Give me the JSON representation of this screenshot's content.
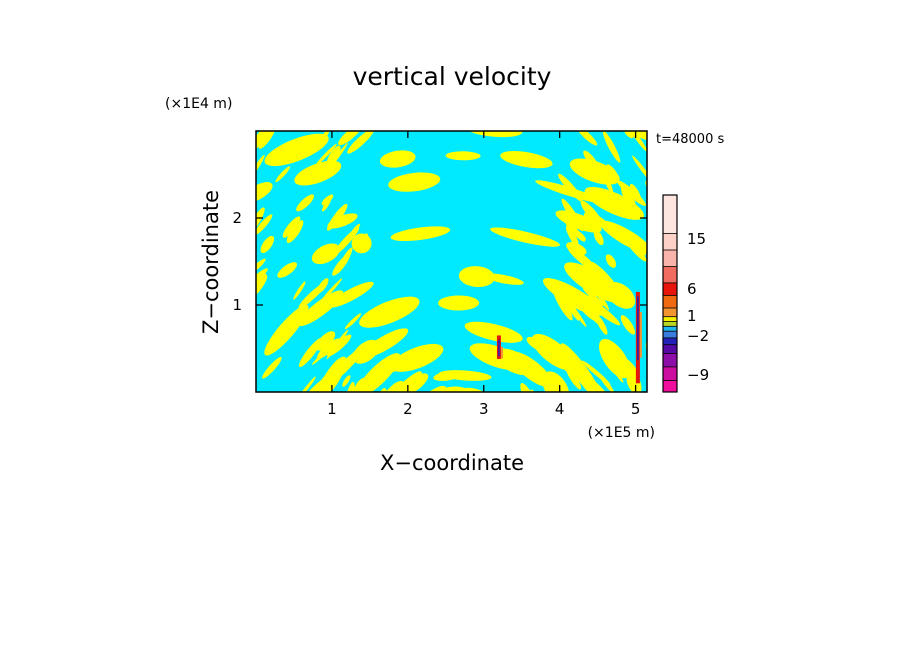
{
  "chart_data": {
    "type": "heatmap",
    "title": "vertical velocity",
    "xlabel": "X−coordinate",
    "ylabel": "Z−coordinate",
    "x_unit": "(×1E5 m)",
    "y_unit": "(×1E4 m)",
    "time_label": "t=48000 s",
    "xlim": [
      0,
      5.15
    ],
    "ylim": [
      0,
      3.0
    ],
    "x_ticks": [
      {
        "value": 1,
        "label": "1"
      },
      {
        "value": 2,
        "label": "2"
      },
      {
        "value": 3,
        "label": "3"
      },
      {
        "value": 4,
        "label": "4"
      },
      {
        "value": 5,
        "label": "5"
      }
    ],
    "y_ticks": [
      {
        "value": 1,
        "label": "1"
      },
      {
        "value": 2,
        "label": "2"
      }
    ],
    "colorbar": {
      "tick_labels": [
        {
          "value": 15,
          "label": "15"
        },
        {
          "value": 6,
          "label": "6"
        },
        {
          "value": 1,
          "label": "1"
        },
        {
          "value": -2,
          "label": "−2"
        },
        {
          "value": -9,
          "label": "−9"
        }
      ],
      "levels_colors_top_to_bottom": [
        "#fde6e0",
        "#fdd0c8",
        "#f8b4aa",
        "#f06c60",
        "#e8150d",
        "#ef6a10",
        "#f29530",
        "#f5f000",
        "#b6d620",
        "#1eb4ec",
        "#3a7cdd",
        "#2222b8",
        "#550aa4",
        "#8e0ea8",
        "#cc0e9e",
        "#f00f9c"
      ]
    },
    "field_colors": {
      "positive_weak": "#ffff00",
      "negative_weak": "#00eaff"
    }
  }
}
